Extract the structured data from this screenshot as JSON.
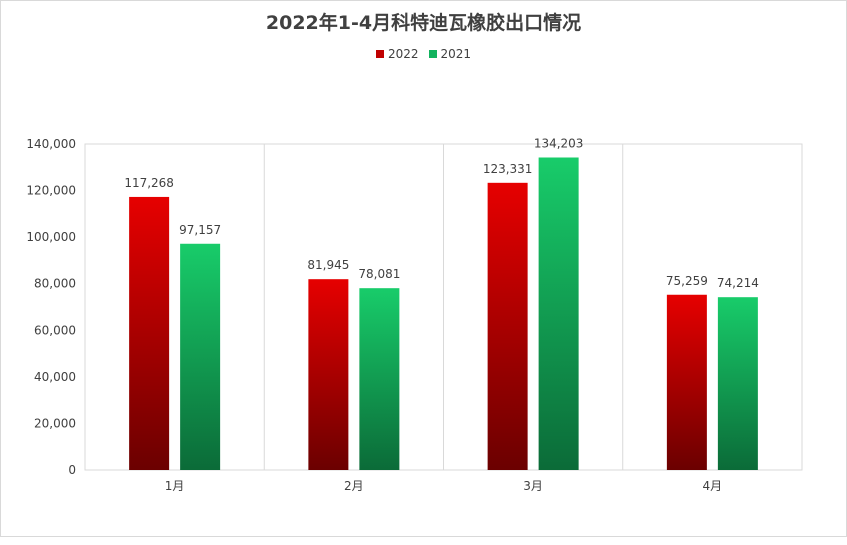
{
  "chart_data": {
    "type": "bar",
    "title": "2022年1-4月科特迪瓦橡胶出口情况",
    "categories": [
      "1月",
      "2月",
      "3月",
      "4月"
    ],
    "series": [
      {
        "name": "2022",
        "values": [
          117268,
          81945,
          123331,
          75259
        ],
        "labels": [
          "117,268",
          "81,945",
          "123,331",
          "75,259"
        ],
        "color_top": "#e60000",
        "color_bottom": "#6b0000"
      },
      {
        "name": "2021",
        "values": [
          97157,
          78081,
          134203,
          74214
        ],
        "labels": [
          "97,157",
          "78,081",
          "134,203",
          "74,214"
        ],
        "color_top": "#18cc6a",
        "color_bottom": "#0b6b38"
      }
    ],
    "ylim": [
      0,
      140000
    ],
    "yticks": [
      "0",
      "20,000",
      "40,000",
      "60,000",
      "80,000",
      "100,000",
      "120,000",
      "140,000"
    ],
    "grid": "vertical category separators",
    "legend_position": "top-center"
  }
}
